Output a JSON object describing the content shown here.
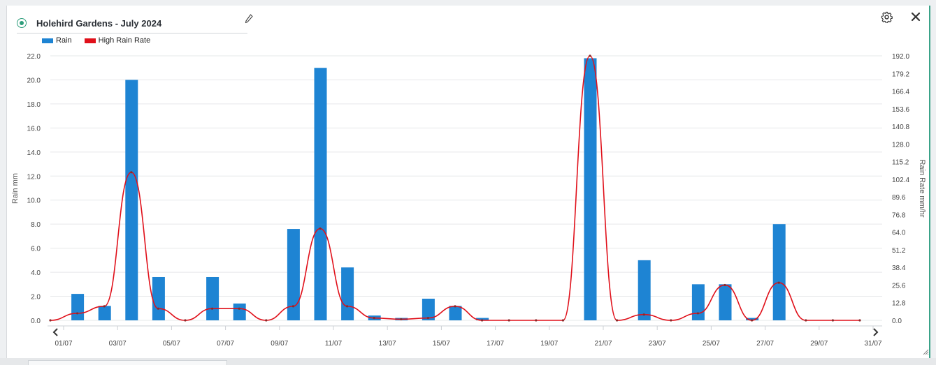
{
  "header": {
    "title": "Holehird Gardens - July 2024",
    "edit_icon": "pencil-icon",
    "settings_icon": "gear-icon",
    "close_icon": "close-icon"
  },
  "colors": {
    "rain": "#1e84d3",
    "high_rain_rate": "#e0101a",
    "accent": "#2f9e7c"
  },
  "chart_data": {
    "type": "bar",
    "title": "Holehird Gardens - July 2024",
    "legend": {
      "placement": "top-left"
    },
    "grid": true,
    "xlabel": "",
    "categories": [
      "01/07",
      "02/07",
      "03/07",
      "04/07",
      "05/07",
      "06/07",
      "07/07",
      "08/07",
      "09/07",
      "10/07",
      "11/07",
      "12/07",
      "13/07",
      "14/07",
      "15/07",
      "16/07",
      "17/07",
      "18/07",
      "19/07",
      "20/07",
      "21/07",
      "22/07",
      "23/07",
      "24/07",
      "25/07",
      "26/07",
      "27/07",
      "28/07",
      "29/07",
      "30/07",
      "31/07"
    ],
    "x_tick_labels": [
      "01/07",
      "03/07",
      "05/07",
      "07/07",
      "09/07",
      "11/07",
      "13/07",
      "15/07",
      "17/07",
      "19/07",
      "21/07",
      "23/07",
      "25/07",
      "27/07",
      "29/07",
      "31/07"
    ],
    "y_left": {
      "label": "Rain mm",
      "ylim": [
        0,
        22
      ],
      "ticks": [
        "0.0",
        "2.0",
        "4.0",
        "6.0",
        "8.0",
        "10.0",
        "12.0",
        "14.0",
        "16.0",
        "18.0",
        "20.0",
        "22.0"
      ]
    },
    "y_right": {
      "label": "Rain Rate mm/hr",
      "ylim": [
        0,
        192
      ],
      "ticks": [
        "0.0",
        "12.8",
        "25.6",
        "38.4",
        "51.2",
        "64.0",
        "76.8",
        "89.6",
        "102.4",
        "115.2",
        "128.0",
        "140.8",
        "153.6",
        "166.4",
        "179.2",
        "192.0"
      ]
    },
    "series": [
      {
        "name": "Rain",
        "type": "bar",
        "axis": "left",
        "values": [
          0,
          2.2,
          1.2,
          20.0,
          3.6,
          0,
          3.6,
          1.4,
          0,
          7.6,
          21.0,
          4.4,
          0.4,
          0.2,
          1.8,
          1.2,
          0.2,
          0,
          0,
          0,
          21.8,
          0,
          5.0,
          0,
          3.0,
          3.0,
          0.2,
          8.0,
          0,
          0,
          0
        ]
      },
      {
        "name": "High Rain Rate",
        "type": "line",
        "axis": "right",
        "values": [
          0,
          5.1,
          10.2,
          107.5,
          8.5,
          0,
          8.5,
          8.5,
          0,
          10.2,
          66.6,
          10.2,
          1.7,
          0.8,
          1.7,
          10.2,
          0,
          0,
          0,
          0,
          192.0,
          0,
          4.2,
          0,
          5.1,
          25.6,
          0,
          27.3,
          0,
          0,
          0
        ]
      }
    ]
  }
}
